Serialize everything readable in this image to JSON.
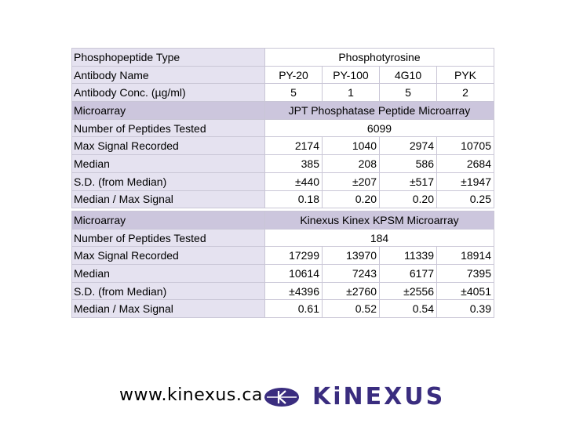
{
  "table1": {
    "phospho_label": "Phosphopeptide Type",
    "phospho_value": "Phosphotyrosine",
    "antibody_label": "Antibody Name",
    "antibodies": [
      "PY-20",
      "PY-100",
      "4G10",
      "PYK"
    ],
    "conc_label": "Antibody Conc. (µg/ml)",
    "concentrations": [
      "5",
      "1",
      "5",
      "2"
    ],
    "microarray_label": "Microarray",
    "microarray_value": "JPT Phosphatase Peptide Microarray",
    "peptides_label": "Number of Peptides Tested",
    "peptides_value": "6099",
    "rows": [
      {
        "label": "Max Signal Recorded",
        "values": [
          "2174",
          "1040",
          "2974",
          "10705"
        ]
      },
      {
        "label": "Median",
        "values": [
          "385",
          "208",
          "586",
          "2684"
        ]
      },
      {
        "label": "S.D. (from Median)",
        "values": [
          "±440",
          "±207",
          "±517",
          "±1947"
        ]
      },
      {
        "label": "Median / Max Signal",
        "values": [
          "0.18",
          "0.20",
          "0.20",
          "0.25"
        ]
      }
    ]
  },
  "table2": {
    "microarray_label": "Microarray",
    "microarray_value": "Kinexus Kinex KPSM Microarray",
    "peptides_label": "Number of Peptides Tested",
    "peptides_value": "184",
    "rows": [
      {
        "label": "Max Signal Recorded",
        "values": [
          "17299",
          "13970",
          "11339",
          "18914"
        ]
      },
      {
        "label": "Median",
        "values": [
          "10614",
          "7243",
          "6177",
          "7395"
        ]
      },
      {
        "label": "S.D. (from Median)",
        "values": [
          "±4396",
          "±2760",
          "±2556",
          "±4051"
        ]
      },
      {
        "label": "Median / Max Signal",
        "values": [
          "0.61",
          "0.52",
          "0.54",
          "0.39"
        ]
      }
    ]
  },
  "footer": {
    "url": "www.kinexus.ca",
    "brand": "KiNEXUS",
    "logo_color": "#3a2d7f"
  }
}
